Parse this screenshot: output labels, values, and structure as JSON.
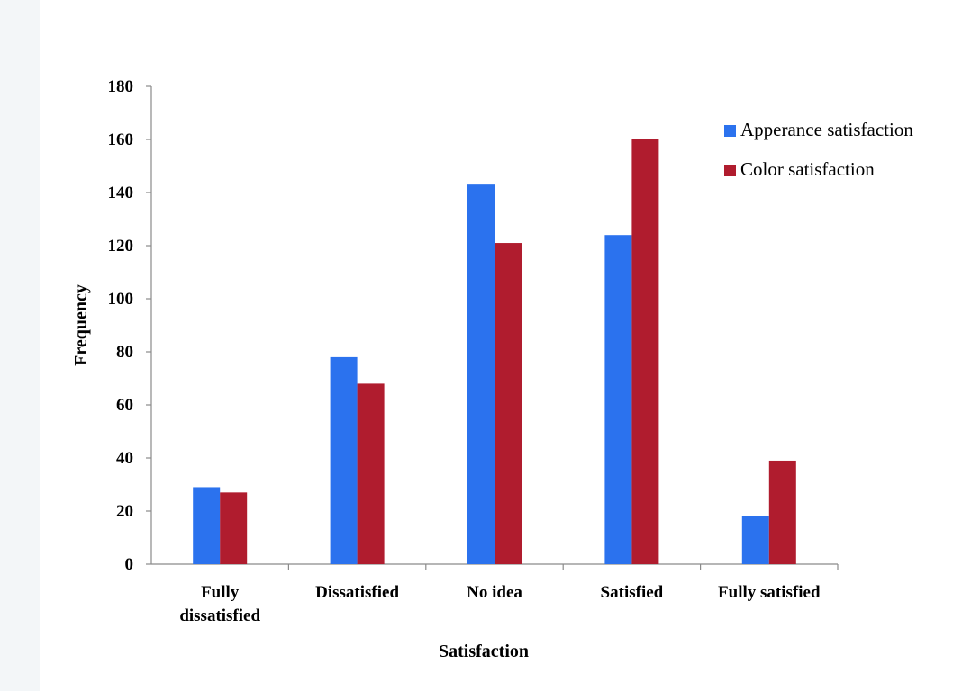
{
  "chart_data": {
    "type": "bar",
    "title": "",
    "xlabel": "Satisfaction",
    "ylabel": "Frequency",
    "ylim": [
      0,
      180
    ],
    "yticks": [
      0,
      20,
      40,
      60,
      80,
      100,
      120,
      140,
      160,
      180
    ],
    "categories": [
      [
        "Fully",
        "dissatisfied"
      ],
      [
        "Dissatisfied"
      ],
      [
        "No idea"
      ],
      [
        "Satisfied"
      ],
      [
        "Fully satisfied"
      ]
    ],
    "series": [
      {
        "name": "Apperance satisfaction",
        "color": "#2b72ee",
        "values": [
          29,
          78,
          143,
          124,
          18
        ]
      },
      {
        "name": "Color satisfaction",
        "color": "#b01c2e",
        "values": [
          27,
          68,
          121,
          160,
          39
        ]
      }
    ],
    "legend_position": "right",
    "grid": false
  }
}
